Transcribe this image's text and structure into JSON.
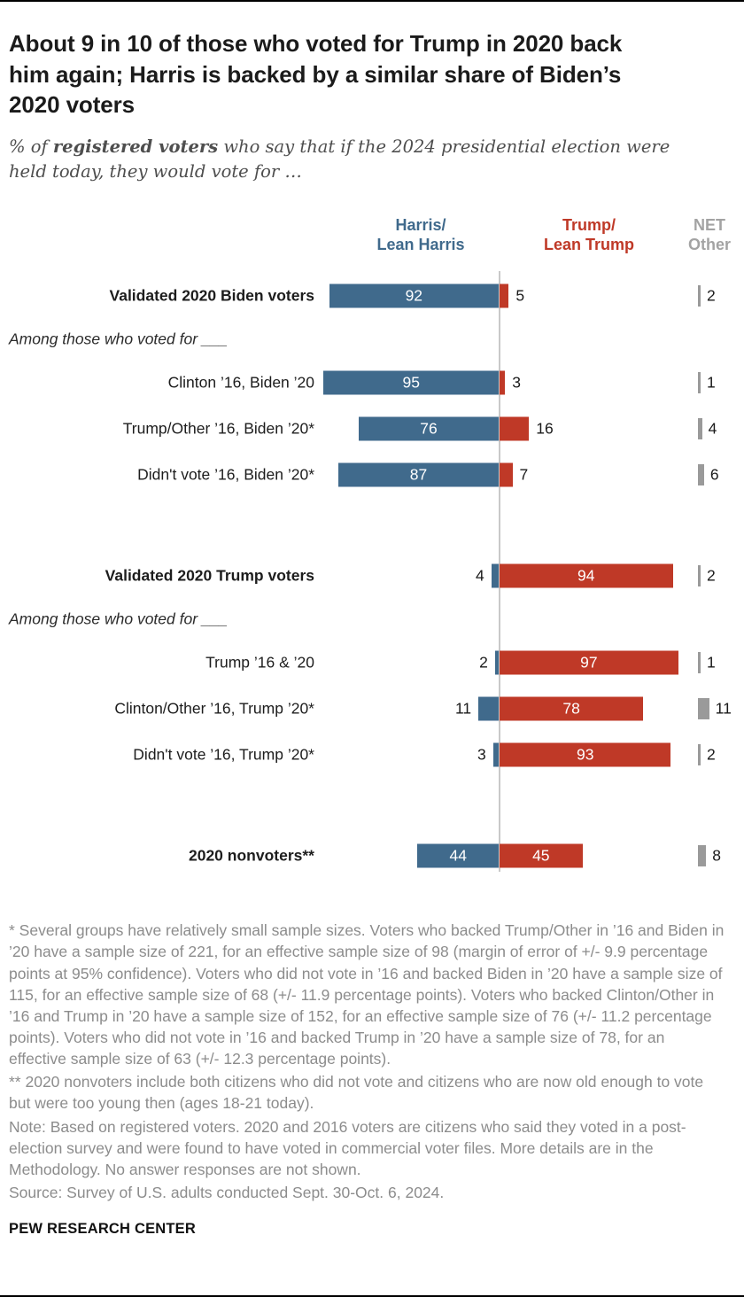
{
  "title": "About 9 in 10 of those who voted for Trump in 2020 back him again; Harris is backed by a similar share of Biden’s 2020 voters",
  "subtitle": {
    "prefix": "% of ",
    "bold": "registered voters",
    "suffix": " who say that if the 2024 presidential election were held today, they would vote for …"
  },
  "columns": {
    "harris_line1": "Harris/",
    "harris_line2": "Lean Harris",
    "trump_line1": "Trump/",
    "trump_line2": "Lean Trump",
    "net_line1": "NET",
    "net_line2": "Other"
  },
  "colors": {
    "harris": "#406A8C",
    "trump": "#BF3927",
    "net_bar": "#9A9A9A",
    "net_header": "#A3A3A3",
    "axis": "#C9C9C9"
  },
  "chart_data": {
    "type": "bar",
    "variant": "diverging-horizontal",
    "unit": "percent",
    "series": [
      "Harris/Lean Harris",
      "Trump/Lean Trump",
      "NET Other"
    ],
    "axis_center": 0,
    "rows": [
      {
        "kind": "data",
        "label": "Validated 2020 Biden voters",
        "bold": true,
        "harris": 92,
        "trump": 5,
        "net": 2
      },
      {
        "kind": "section",
        "label": "Among those who voted for ___"
      },
      {
        "kind": "data",
        "label": "Clinton ’16, Biden ’20",
        "bold": false,
        "harris": 95,
        "trump": 3,
        "net": 1
      },
      {
        "kind": "data",
        "label": "Trump/Other ’16, Biden ’20*",
        "bold": false,
        "harris": 76,
        "trump": 16,
        "net": 4
      },
      {
        "kind": "data",
        "label": "Didn't vote ’16, Biden ’20*",
        "bold": false,
        "harris": 87,
        "trump": 7,
        "net": 6
      },
      {
        "kind": "spacer"
      },
      {
        "kind": "data",
        "label": "Validated 2020 Trump voters",
        "bold": true,
        "harris": 4,
        "trump": 94,
        "net": 2
      },
      {
        "kind": "section",
        "label": "Among those who voted for ___"
      },
      {
        "kind": "data",
        "label": "Trump ’16 & ’20",
        "bold": false,
        "harris": 2,
        "trump": 97,
        "net": 1
      },
      {
        "kind": "data",
        "label": "Clinton/Other ’16, Trump ’20*",
        "bold": false,
        "harris": 11,
        "trump": 78,
        "net": 11
      },
      {
        "kind": "data",
        "label": "Didn't vote ’16, Trump ’20*",
        "bold": false,
        "harris": 3,
        "trump": 93,
        "net": 2
      },
      {
        "kind": "spacer"
      },
      {
        "kind": "data",
        "label": "2020 nonvoters**",
        "bold": true,
        "harris": 44,
        "trump": 45,
        "net": 8
      }
    ]
  },
  "footnotes": [
    "* Several groups have relatively small sample sizes. Voters who backed Trump/Other in ’16 and Biden in ’20 have a sample size of 221, for an effective sample size of 98 (margin of error of +/- 9.9 percentage points at 95% confidence). Voters who did not vote in ’16 and backed Biden in ’20 have a sample size of 115, for an effective sample size of 68 (+/- 11.9 percentage points). Voters who backed Clinton/Other in ’16 and Trump in ’20 have a sample size of 152, for an effective sample size of 76 (+/- 11.2 percentage points). Voters who did not vote in ’16 and backed Trump in ’20 have a sample size of 78, for an effective sample size of 63 (+/- 12.3 percentage points).",
    "** 2020 nonvoters include both citizens who did not vote and citizens who are now old enough to vote but were too young then (ages 18-21 today).",
    "Note: Based on registered voters. 2020 and 2016 voters are citizens who said they voted in a post-election survey and were found to have voted in commercial voter files. More details are in the Methodology. No answer responses are not shown.",
    "Source: Survey of U.S. adults conducted Sept. 30-Oct. 6, 2024."
  ],
  "footer": "PEW RESEARCH CENTER"
}
